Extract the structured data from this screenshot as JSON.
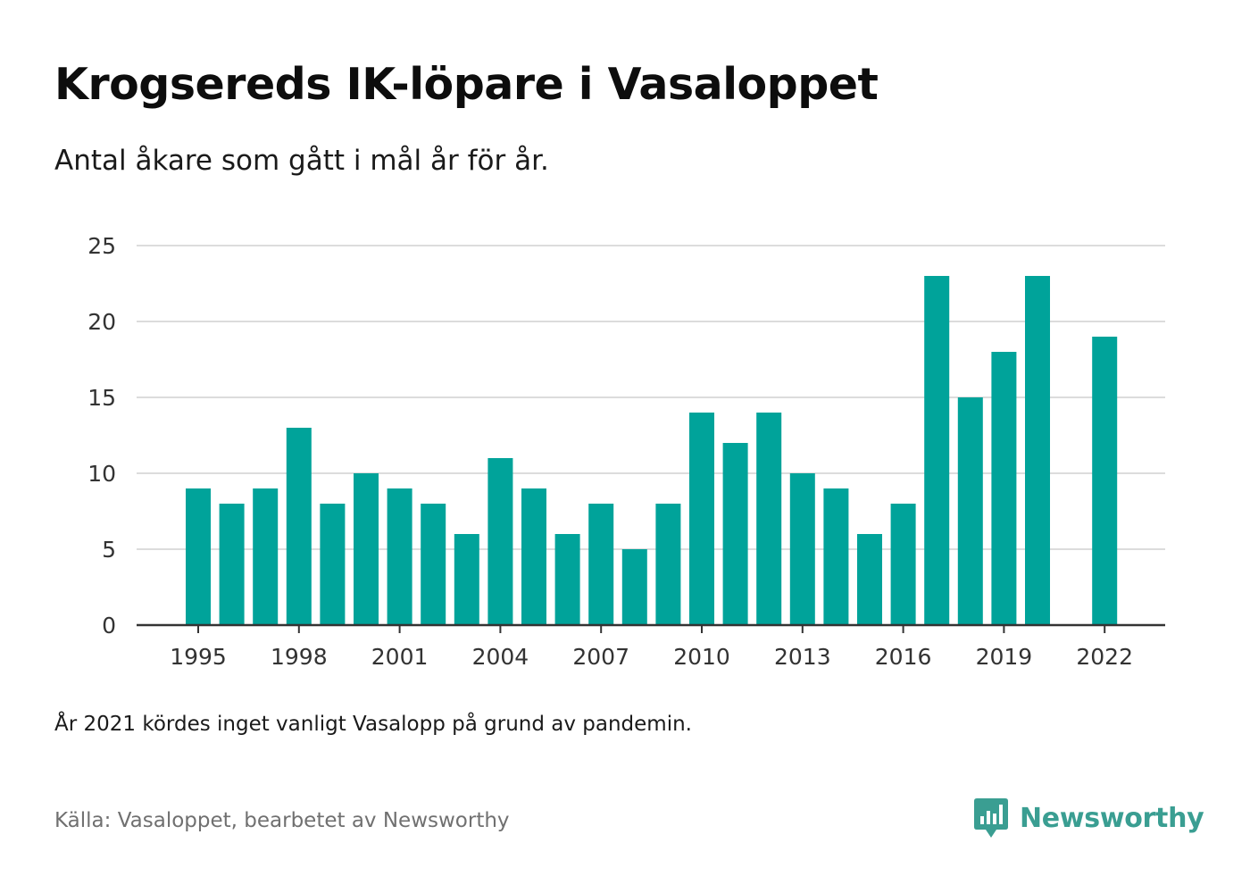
{
  "title": "Krogsereds IK-löpare i Vasaloppet",
  "subtitle": "Antal åkare som gått i mål år för år.",
  "note": "År 2021 kördes inget vanligt Vasalopp på grund av pandemin.",
  "source": "Källa: Vasaloppet, bearbetet av Newsworthy",
  "brand": {
    "name": "Newsworthy",
    "icon": "newsworthy-logo-icon",
    "color": "#3a9e92"
  },
  "colors": {
    "bar": "#00a39a",
    "grid": "#dcdcdc",
    "axis": "#333333",
    "tick_text": "#333333"
  },
  "chart_data": {
    "type": "bar",
    "categories": [
      1995,
      1996,
      1997,
      1998,
      1999,
      2000,
      2001,
      2002,
      2003,
      2004,
      2005,
      2006,
      2007,
      2008,
      2009,
      2010,
      2011,
      2012,
      2013,
      2014,
      2015,
      2016,
      2017,
      2018,
      2019,
      2020,
      2021,
      2022
    ],
    "values": [
      9,
      8,
      9,
      13,
      8,
      10,
      9,
      8,
      6,
      11,
      9,
      6,
      8,
      5,
      8,
      14,
      12,
      14,
      10,
      9,
      6,
      8,
      23,
      15,
      18,
      23,
      null,
      19
    ],
    "x_tick_labels": [
      "1995",
      "1998",
      "2001",
      "2004",
      "2007",
      "2010",
      "2013",
      "2016",
      "2019",
      "2022"
    ],
    "y_ticks": [
      0,
      5,
      10,
      15,
      20,
      25
    ],
    "ylim": [
      0,
      25
    ],
    "grid": true,
    "legend": "none",
    "xlabel": "",
    "ylabel": ""
  }
}
